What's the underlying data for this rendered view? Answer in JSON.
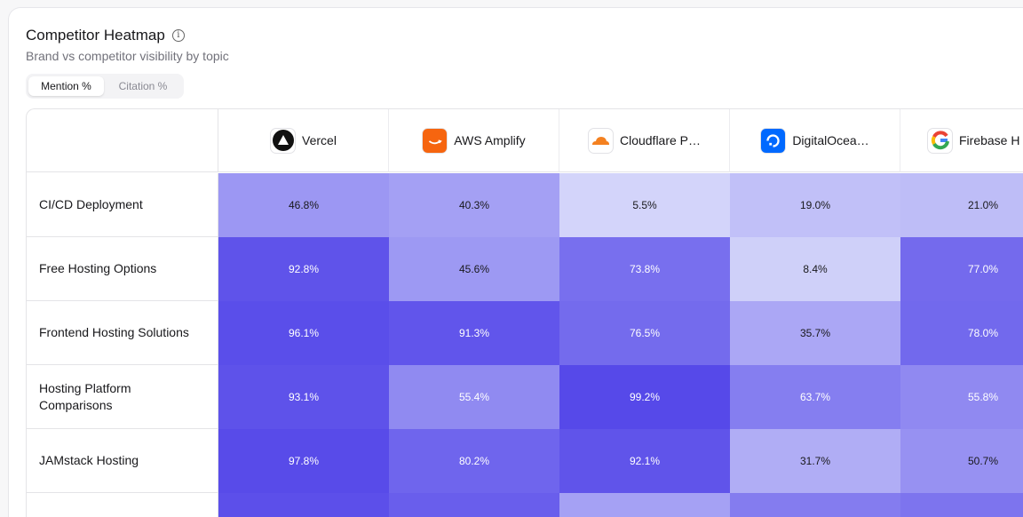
{
  "header": {
    "title": "Competitor Heatmap",
    "subtitle": "Brand vs competitor visibility by topic",
    "info_icon": "info-icon"
  },
  "toggle": {
    "options": [
      "Mention %",
      "Citation %"
    ],
    "selected": "Mention %"
  },
  "colors": {
    "low": "#dadcfb",
    "high": "#5548e9"
  },
  "competitors": [
    {
      "name": "Vercel",
      "icon": "vercel-logo-icon"
    },
    {
      "name": "AWS Amplify",
      "icon": "aws-logo-icon"
    },
    {
      "name": "Cloudflare P…",
      "icon": "cloudflare-logo-icon"
    },
    {
      "name": "DigitalOcea…",
      "icon": "digitalocean-logo-icon"
    },
    {
      "name": "Firebase H",
      "icon": "firebase-google-logo-icon"
    }
  ],
  "rows": [
    {
      "topic": "CI/CD Deployment",
      "values": [
        "46.8%",
        "40.3%",
        "5.5%",
        "19.0%",
        "21.0%"
      ]
    },
    {
      "topic": "Free Hosting Options",
      "values": [
        "92.8%",
        "45.6%",
        "73.8%",
        "8.4%",
        "77.0%"
      ]
    },
    {
      "topic": "Frontend Hosting Solutions",
      "values": [
        "96.1%",
        "91.3%",
        "76.5%",
        "35.7%",
        "78.0%"
      ]
    },
    {
      "topic": "Hosting Platform Comparisons",
      "values": [
        "93.1%",
        "55.4%",
        "99.2%",
        "63.7%",
        "55.8%"
      ]
    },
    {
      "topic": "JAMstack Hosting",
      "values": [
        "97.8%",
        "80.2%",
        "92.1%",
        "31.7%",
        "50.7%"
      ]
    }
  ],
  "partial_row_levels": [
    95,
    85,
    40,
    65,
    70
  ]
}
